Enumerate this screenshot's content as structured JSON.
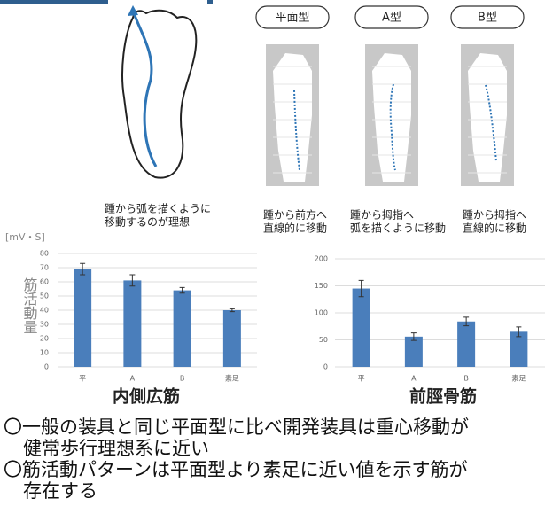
{
  "diagram": {
    "ideal_caption": [
      "踵から弧を描くように",
      "移動するのが理想"
    ],
    "types": [
      {
        "label": "平面型",
        "caption": [
          "踵から前方へ",
          "直線的に移動"
        ]
      },
      {
        "label": "A型",
        "caption": [
          "踵から拇指へ",
          "弧を描くように移動"
        ]
      },
      {
        "label": "B型",
        "caption": [
          "踵から拇指へ",
          "直線的に移動"
        ]
      }
    ]
  },
  "chart_data": [
    {
      "type": "bar",
      "title": "内側広筋",
      "y_label": "筋活動量",
      "unit": "[mV・S]",
      "categories": [
        "平",
        "A",
        "B",
        "素足"
      ],
      "values": [
        69,
        61,
        54,
        40
      ],
      "errors": [
        4,
        4,
        2,
        1
      ],
      "color": "#4a7ebb",
      "ylim": [
        0,
        80
      ],
      "yticks": [
        0,
        10,
        20,
        30,
        40,
        50,
        60,
        70,
        80
      ],
      "grid": true
    },
    {
      "type": "bar",
      "title": "前脛骨筋",
      "categories": [
        "平",
        "A",
        "B",
        "素足"
      ],
      "values": [
        145,
        56,
        84,
        65
      ],
      "errors": [
        15,
        7,
        8,
        9
      ],
      "color": "#4a7ebb",
      "ylim": [
        0,
        200
      ],
      "yticks": [
        0,
        50,
        100,
        150,
        200
      ],
      "grid": true
    }
  ],
  "notes": [
    [
      "〇一般の装具と同じ平面型に比べ開発装具は重心移動が",
      "健常歩行理想系に近い"
    ],
    [
      "〇筋活動パターンは平面型より素足に近い値を示す筋が",
      "存在する"
    ]
  ]
}
